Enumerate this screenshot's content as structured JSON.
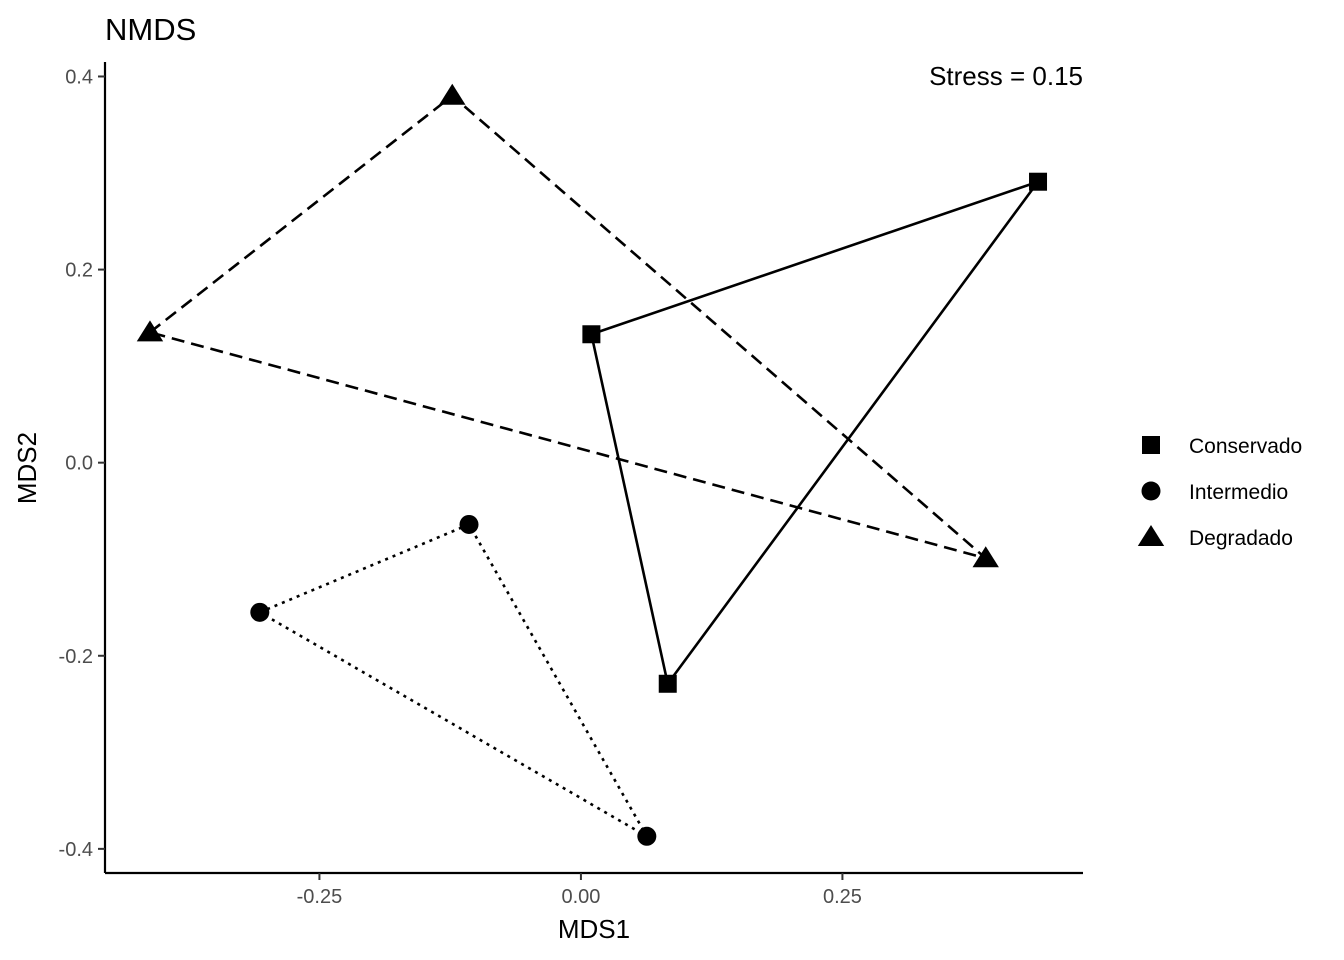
{
  "chart_data": {
    "type": "scatter",
    "title": "NMDS",
    "xlabel": "MDS1",
    "ylabel": "MDS2",
    "xlim": [
      -0.455,
      0.48
    ],
    "ylim": [
      -0.425,
      0.415
    ],
    "x_ticks": [
      -0.25,
      0.0,
      0.25
    ],
    "x_tick_labels": [
      "-0.25",
      "0.00",
      "0.25"
    ],
    "y_ticks": [
      -0.4,
      -0.2,
      0.0,
      0.2,
      0.4
    ],
    "y_tick_labels": [
      "-0.4",
      "-0.2",
      "0.0",
      "0.2",
      "0.4"
    ],
    "annotation": "Stress = 0.15",
    "grid": false,
    "legend_position": "right",
    "series": [
      {
        "name": "Conservado",
        "shape": "square",
        "hull_line": "solid",
        "color": "#000000",
        "points": [
          {
            "x": 0.01,
            "y": 0.133
          },
          {
            "x": 0.437,
            "y": 0.291
          },
          {
            "x": 0.083,
            "y": -0.229
          }
        ]
      },
      {
        "name": "Intermedio",
        "shape": "circle",
        "hull_line": "dotted",
        "color": "#000000",
        "points": [
          {
            "x": -0.307,
            "y": -0.155
          },
          {
            "x": -0.107,
            "y": -0.064
          },
          {
            "x": 0.063,
            "y": -0.387
          }
        ]
      },
      {
        "name": "Degradado",
        "shape": "triangle",
        "hull_line": "dashed",
        "color": "#000000",
        "points": [
          {
            "x": -0.412,
            "y": 0.135
          },
          {
            "x": -0.123,
            "y": 0.38
          },
          {
            "x": 0.387,
            "y": -0.099
          }
        ]
      }
    ]
  }
}
